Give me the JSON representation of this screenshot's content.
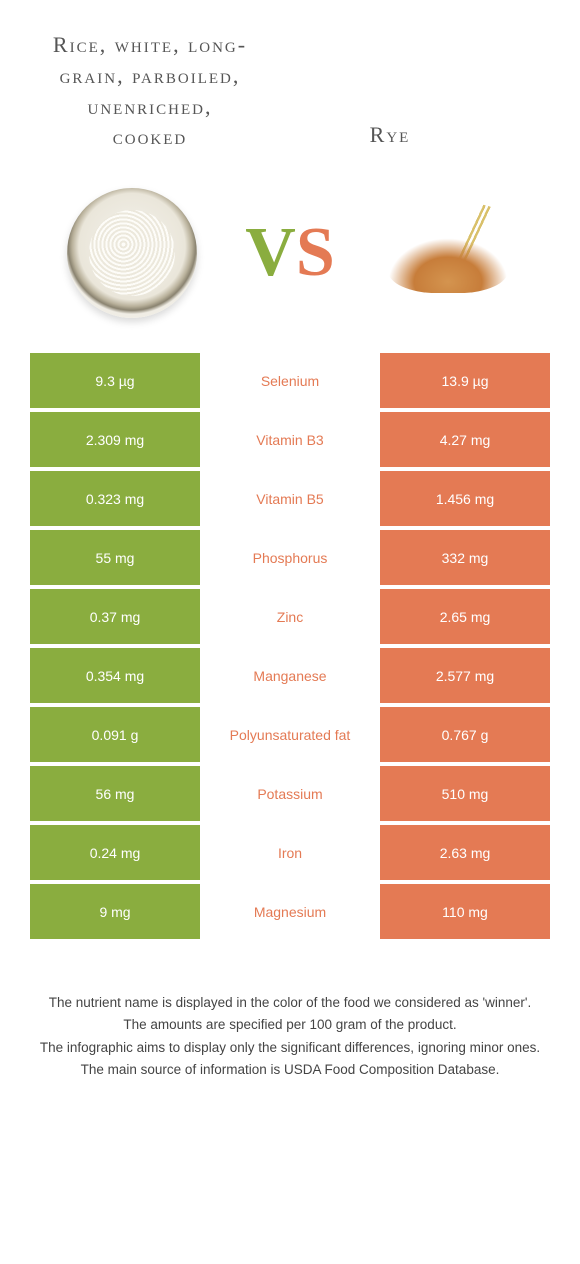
{
  "header": {
    "left_title": "Rice, white, long-grain, parboiled, unenriched, cooked",
    "right_title": "Rye",
    "vs_v": "V",
    "vs_s": "S"
  },
  "colors": {
    "left": "#8aad3f",
    "right": "#e47a54",
    "text": "#555555",
    "footer_text": "#444444",
    "background": "#ffffff"
  },
  "table": {
    "rows": [
      {
        "left": "9.3 µg",
        "label": "Selenium",
        "right": "13.9 µg",
        "winner": "right"
      },
      {
        "left": "2.309 mg",
        "label": "Vitamin B3",
        "right": "4.27 mg",
        "winner": "right"
      },
      {
        "left": "0.323 mg",
        "label": "Vitamin B5",
        "right": "1.456 mg",
        "winner": "right"
      },
      {
        "left": "55 mg",
        "label": "Phosphorus",
        "right": "332 mg",
        "winner": "right"
      },
      {
        "left": "0.37 mg",
        "label": "Zinc",
        "right": "2.65 mg",
        "winner": "right"
      },
      {
        "left": "0.354 mg",
        "label": "Manganese",
        "right": "2.577 mg",
        "winner": "right"
      },
      {
        "left": "0.091 g",
        "label": "Polyunsaturated fat",
        "right": "0.767 g",
        "winner": "right"
      },
      {
        "left": "56 mg",
        "label": "Potassium",
        "right": "510 mg",
        "winner": "right"
      },
      {
        "left": "0.24 mg",
        "label": "Iron",
        "right": "2.63 mg",
        "winner": "right"
      },
      {
        "left": "9 mg",
        "label": "Magnesium",
        "right": "110 mg",
        "winner": "right"
      }
    ]
  },
  "footer": {
    "line1": "The nutrient name is displayed in the color of the food we considered as 'winner'.",
    "line2": "The amounts are specified per 100 gram of the product.",
    "line3": "The infographic aims to display only the significant differences, ignoring minor ones.",
    "line4": "The main source of information is USDA Food Composition Database."
  }
}
